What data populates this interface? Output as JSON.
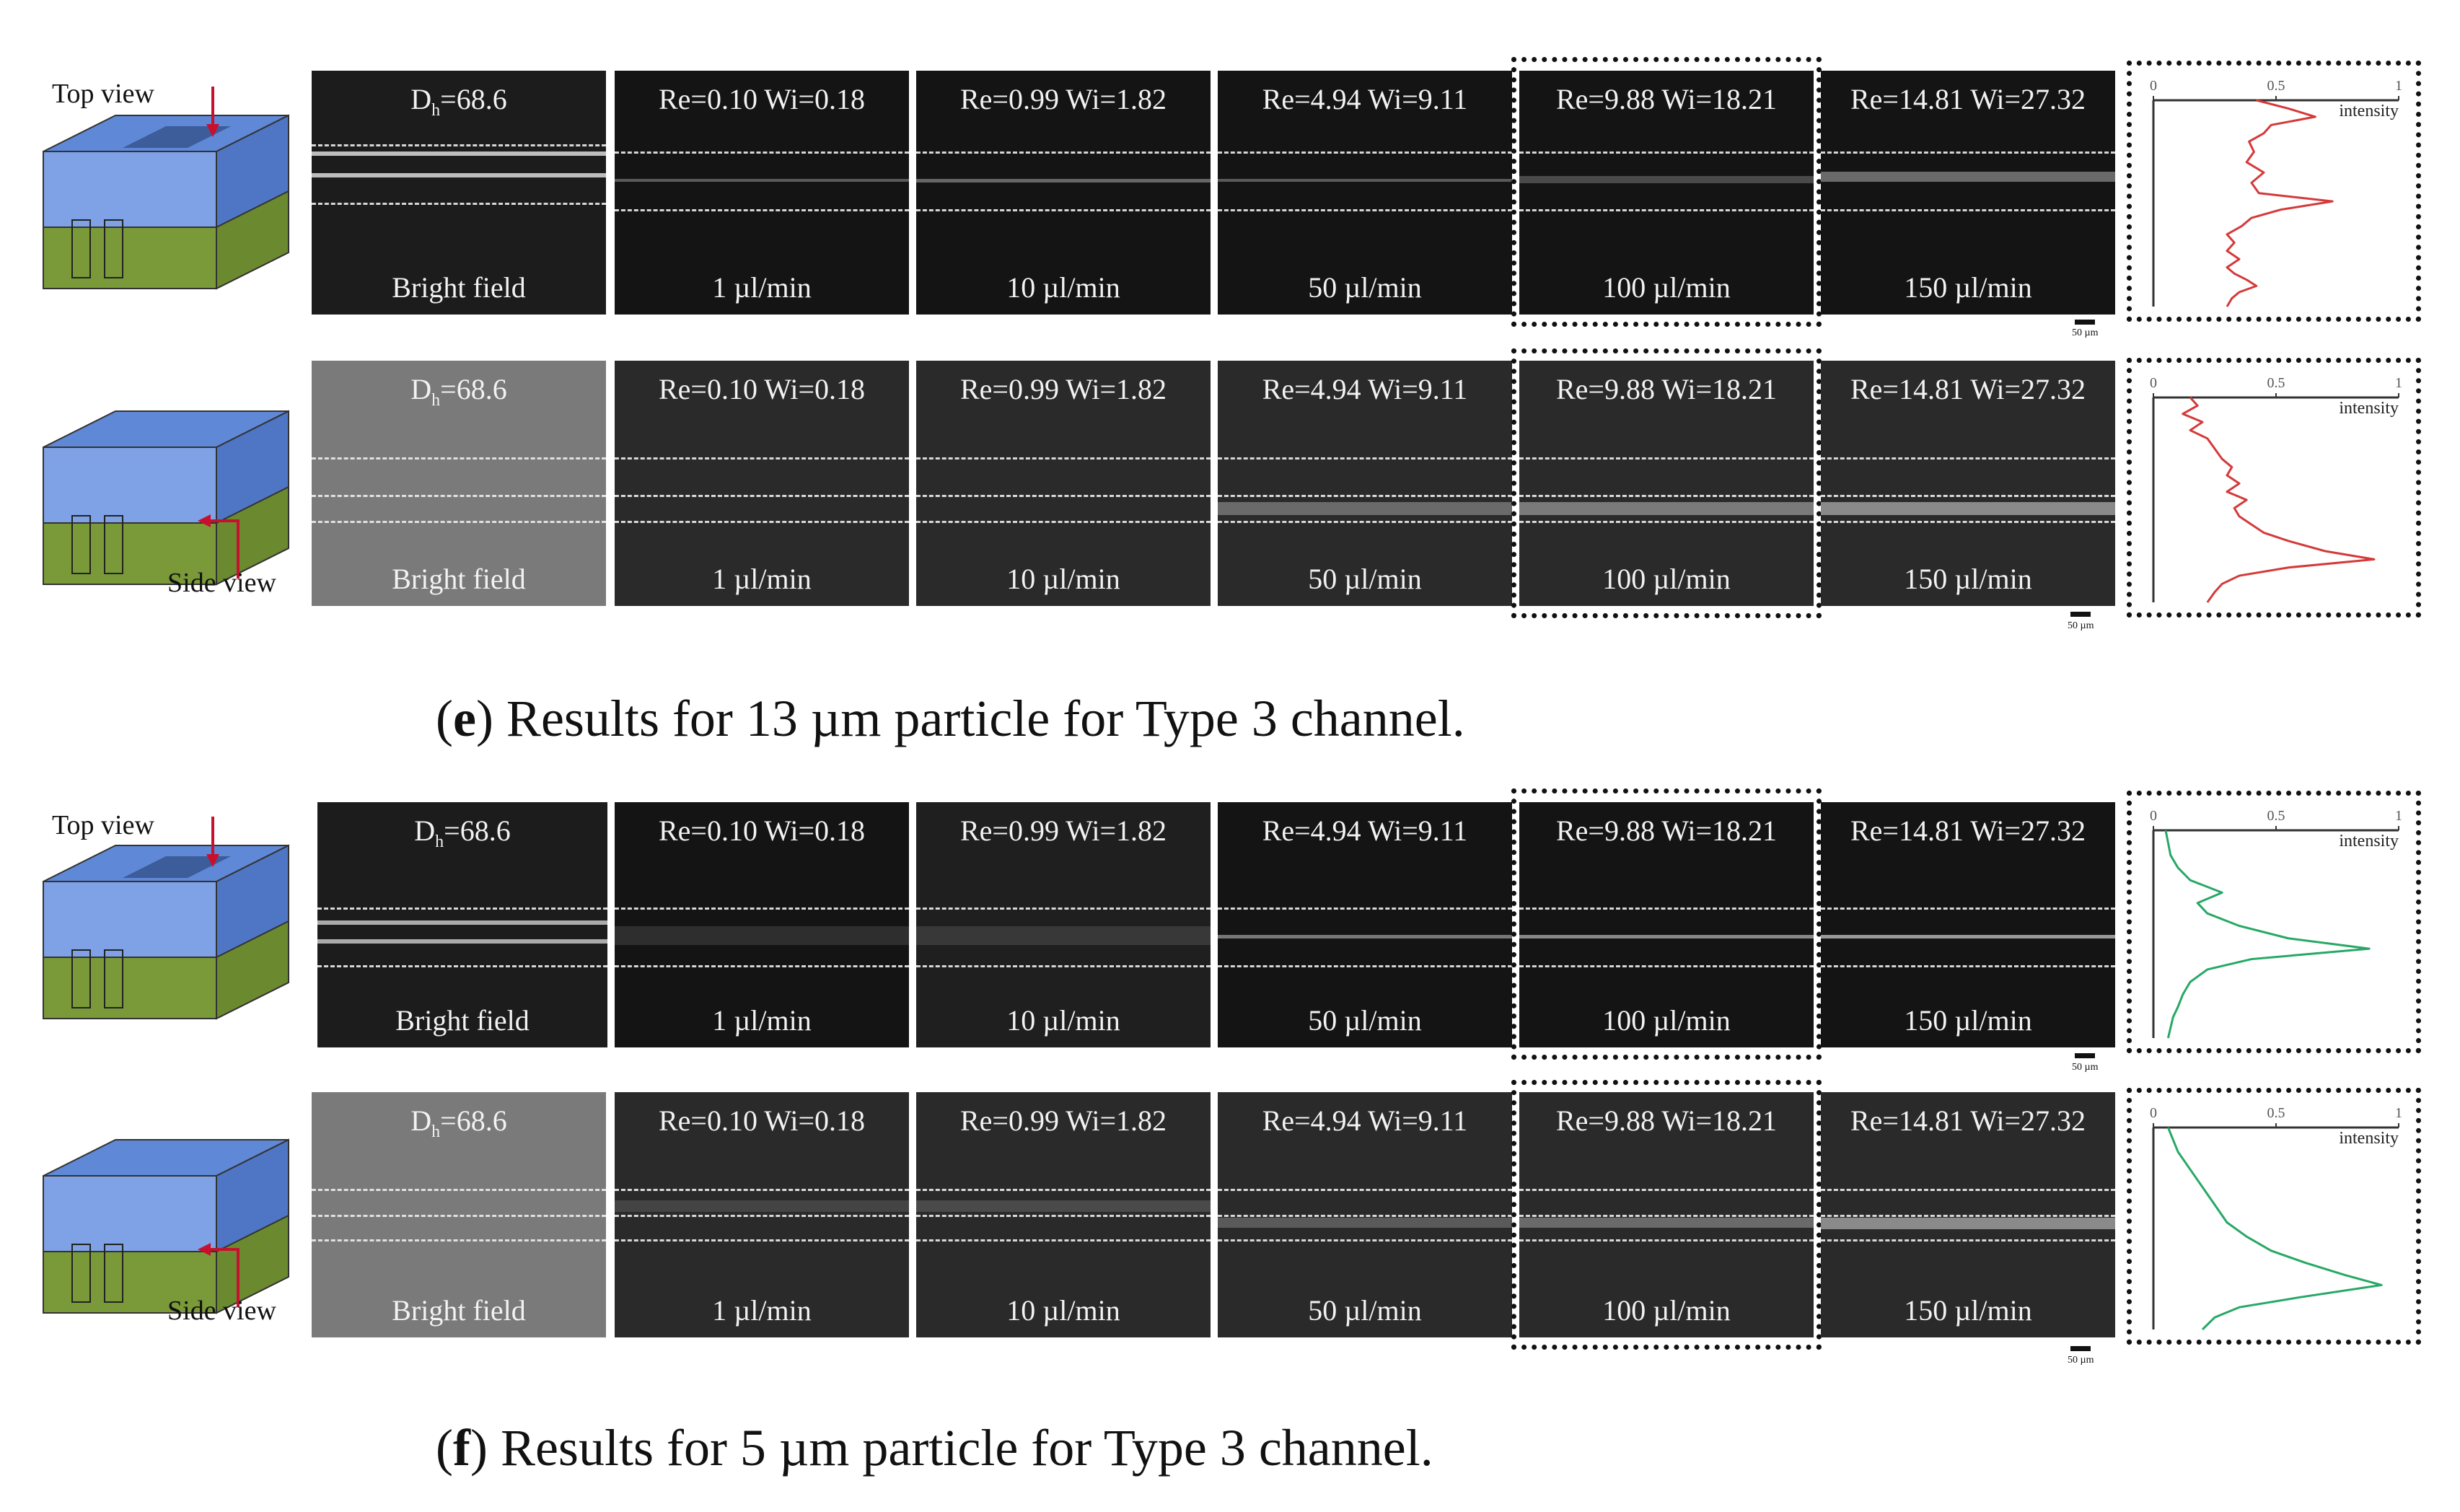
{
  "figure": {
    "views": {
      "top": "Top view",
      "side": "Side view"
    },
    "bright_field_label": "Bright field",
    "dh_prefix": "D",
    "dh_sub": "h",
    "dh_value": "=68.6",
    "conditions": [
      {
        "re_wi": "Re=0.10 Wi=0.18",
        "flow": "1 µl/min"
      },
      {
        "re_wi": "Re=0.99 Wi=1.82",
        "flow": "10 µl/min"
      },
      {
        "re_wi": "Re=4.94 Wi=9.11",
        "flow": "50 µl/min"
      },
      {
        "re_wi": "Re=9.88 Wi=18.21",
        "flow": "100 µl/min"
      },
      {
        "re_wi": "Re=14.81 Wi=27.32",
        "flow": "150 µl/min"
      }
    ],
    "scale_bar": "50 µm",
    "profile_axis": {
      "ticks": [
        "0",
        "0.5",
        "1"
      ],
      "label": "intensity"
    },
    "colors": {
      "red_profile": "#d43a3a",
      "green_profile": "#27a866"
    },
    "captions": {
      "e": {
        "letter": "e",
        "text": ") Results for 13 µm particle for Type 3 channel."
      },
      "f": {
        "letter": "f",
        "text": ") Results for 5 µm particle for Type 3 channel."
      }
    }
  },
  "chart_data": [
    {
      "type": "line",
      "title": "",
      "xlabel": "intensity",
      "ylabel": "",
      "xlim": [
        0,
        1
      ],
      "series": [
        {
          "x": [
            0.42,
            0.55,
            0.66,
            0.48,
            0.45,
            0.39,
            0.41,
            0.38,
            0.45,
            0.4,
            0.43,
            0.73,
            0.52,
            0.4,
            0.36,
            0.3,
            0.33,
            0.3,
            0.35,
            0.3,
            0.33,
            0.38,
            0.42,
            0.35,
            0.32,
            0.3
          ],
          "y": [
            0.0,
            0.04,
            0.08,
            0.12,
            0.16,
            0.2,
            0.25,
            0.3,
            0.35,
            0.4,
            0.45,
            0.49,
            0.53,
            0.57,
            0.61,
            0.65,
            0.69,
            0.73,
            0.77,
            0.81,
            0.84,
            0.87,
            0.9,
            0.93,
            0.96,
            1.0
          ]
        }
      ]
    },
    {
      "type": "line",
      "title": "",
      "xlabel": "intensity",
      "ylabel": "",
      "xlim": [
        0,
        1
      ],
      "series": [
        {
          "x": [
            0.15,
            0.18,
            0.12,
            0.2,
            0.15,
            0.22,
            0.25,
            0.28,
            0.32,
            0.3,
            0.35,
            0.3,
            0.38,
            0.33,
            0.35,
            0.4,
            0.45,
            0.55,
            0.7,
            0.9,
            0.55,
            0.35,
            0.28,
            0.25,
            0.22
          ],
          "y": [
            0.0,
            0.04,
            0.08,
            0.12,
            0.16,
            0.2,
            0.25,
            0.3,
            0.34,
            0.38,
            0.42,
            0.46,
            0.5,
            0.54,
            0.58,
            0.62,
            0.66,
            0.7,
            0.75,
            0.79,
            0.83,
            0.87,
            0.91,
            0.95,
            1.0
          ]
        }
      ]
    },
    {
      "type": "line",
      "title": "",
      "xlabel": "intensity",
      "ylabel": "",
      "xlim": [
        0,
        1
      ],
      "series": [
        {
          "x": [
            0.05,
            0.06,
            0.07,
            0.1,
            0.15,
            0.28,
            0.18,
            0.22,
            0.35,
            0.55,
            0.88,
            0.4,
            0.22,
            0.15,
            0.12,
            0.1,
            0.08,
            0.07,
            0.06
          ],
          "y": [
            0.0,
            0.06,
            0.12,
            0.18,
            0.24,
            0.3,
            0.35,
            0.4,
            0.46,
            0.52,
            0.57,
            0.62,
            0.67,
            0.73,
            0.79,
            0.85,
            0.9,
            0.95,
            1.0
          ]
        }
      ]
    },
    {
      "type": "line",
      "title": "",
      "xlabel": "intensity",
      "ylabel": "",
      "xlim": [
        0,
        1
      ],
      "series": [
        {
          "x": [
            0.06,
            0.08,
            0.1,
            0.14,
            0.18,
            0.22,
            0.26,
            0.3,
            0.38,
            0.48,
            0.62,
            0.78,
            0.93,
            0.6,
            0.35,
            0.25,
            0.2
          ],
          "y": [
            0.0,
            0.06,
            0.12,
            0.19,
            0.26,
            0.33,
            0.4,
            0.47,
            0.54,
            0.61,
            0.67,
            0.73,
            0.78,
            0.84,
            0.89,
            0.94,
            1.0
          ]
        }
      ]
    }
  ]
}
